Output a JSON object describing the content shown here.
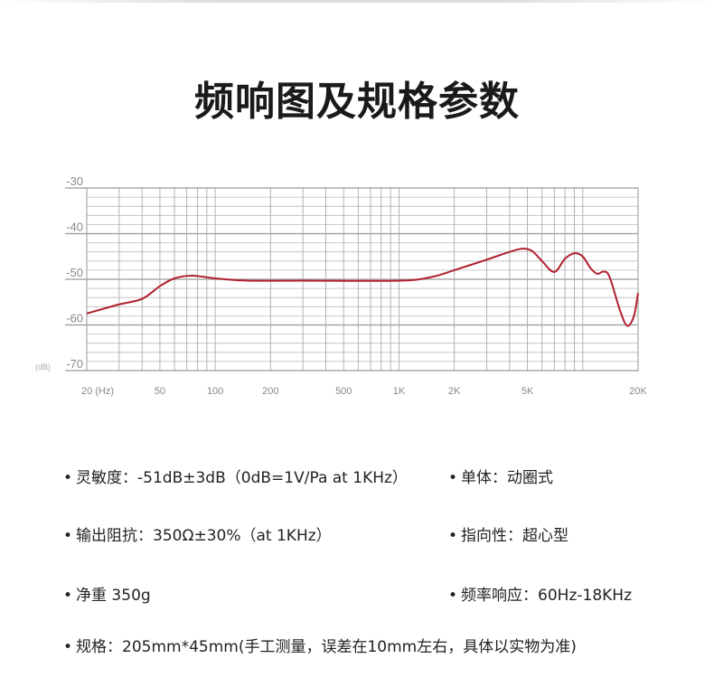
{
  "title": "频响图及规格参数",
  "chart_data": {
    "type": "line",
    "xscale": "log",
    "xlim": [
      20,
      20000
    ],
    "ylim": [
      -70,
      -30
    ],
    "grid": true,
    "xticks": [
      {
        "value": 20,
        "label": "20 (Hz)"
      },
      {
        "value": 50,
        "label": "50"
      },
      {
        "value": 100,
        "label": "100"
      },
      {
        "value": 200,
        "label": "200"
      },
      {
        "value": 500,
        "label": "500"
      },
      {
        "value": 1000,
        "label": "1K"
      },
      {
        "value": 2000,
        "label": "2K"
      },
      {
        "value": 5000,
        "label": "5K"
      },
      {
        "value": 20000,
        "label": "20K"
      }
    ],
    "yticks": [
      {
        "value": -30,
        "label": "-30"
      },
      {
        "value": -40,
        "label": "-40"
      },
      {
        "value": -50,
        "label": "-50"
      },
      {
        "value": -60,
        "label": "-60"
      },
      {
        "value": -70,
        "label": "-70"
      }
    ],
    "yunit_label": "(dB)",
    "line_color": "#b0202e",
    "series": [
      {
        "x": [
          20,
          30,
          40,
          50,
          60,
          75,
          100,
          150,
          300,
          1000,
          1500,
          2000,
          3000,
          4000,
          4700,
          5300,
          6000,
          7000,
          8000,
          9000,
          10000,
          11000,
          12000,
          13000,
          14000,
          16000,
          17500,
          19000,
          20000
        ],
        "y": [
          -57.5,
          -55.5,
          -54.3,
          -51.5,
          -49.8,
          -49.2,
          -49.8,
          -50.3,
          -50.3,
          -50.3,
          -49.5,
          -48,
          -45.7,
          -44,
          -43.3,
          -43.8,
          -46,
          -48.4,
          -45.5,
          -44.3,
          -45,
          -47.5,
          -48.8,
          -48.3,
          -49.5,
          -57,
          -60.2,
          -58,
          -53
        ]
      }
    ]
  },
  "specs": {
    "sensitivity": "灵敏度：-51dB±3dB（0dB=1V/Pa at 1KHz）",
    "driver": "单体：动圈式",
    "impedance": "输出阻抗：350Ω±30%（at 1KHz）",
    "polar": "指向性：超心型",
    "weight": "净重 350g",
    "frequency": "频率响应：60Hz-18KHz",
    "size": "规格：205mm*45mm(手工测量，误差在10mm左右，具体以实物为准)"
  },
  "bullet": "•"
}
